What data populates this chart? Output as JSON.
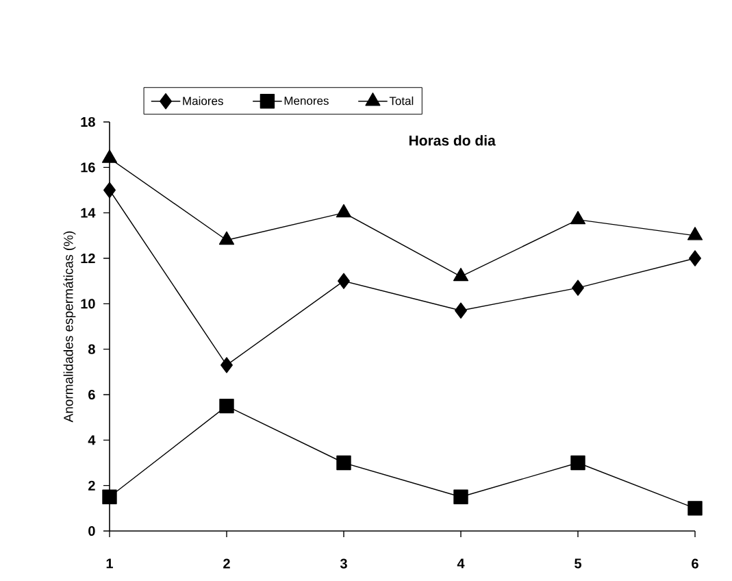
{
  "chart_data": {
    "type": "line",
    "xlabel": "Horas do dia",
    "ylabel": "Anormalidades espermáticas (%)",
    "x": [
      1,
      2,
      3,
      4,
      5,
      6
    ],
    "series": [
      {
        "name": "Maiores",
        "color": "#000000",
        "marker": "diamond",
        "values": [
          15.0,
          7.3,
          11.0,
          9.7,
          10.7,
          12.0
        ]
      },
      {
        "name": "Menores",
        "color": "#000000",
        "marker": "square",
        "values": [
          1.5,
          5.5,
          3.0,
          1.5,
          3.0,
          1.0
        ]
      },
      {
        "name": "Total",
        "color": "#000000",
        "marker": "triangle",
        "values": [
          16.4,
          12.8,
          14.0,
          11.2,
          13.7,
          13.0
        ]
      }
    ],
    "xlim": [
      1,
      6
    ],
    "xticks": [
      1,
      2,
      3,
      4,
      5,
      6
    ],
    "ylim": [
      0,
      18
    ],
    "yticks": [
      0,
      2,
      4,
      6,
      8,
      10,
      12,
      14,
      16,
      18
    ],
    "grid": false,
    "legend": "top",
    "line_style": "solid"
  }
}
